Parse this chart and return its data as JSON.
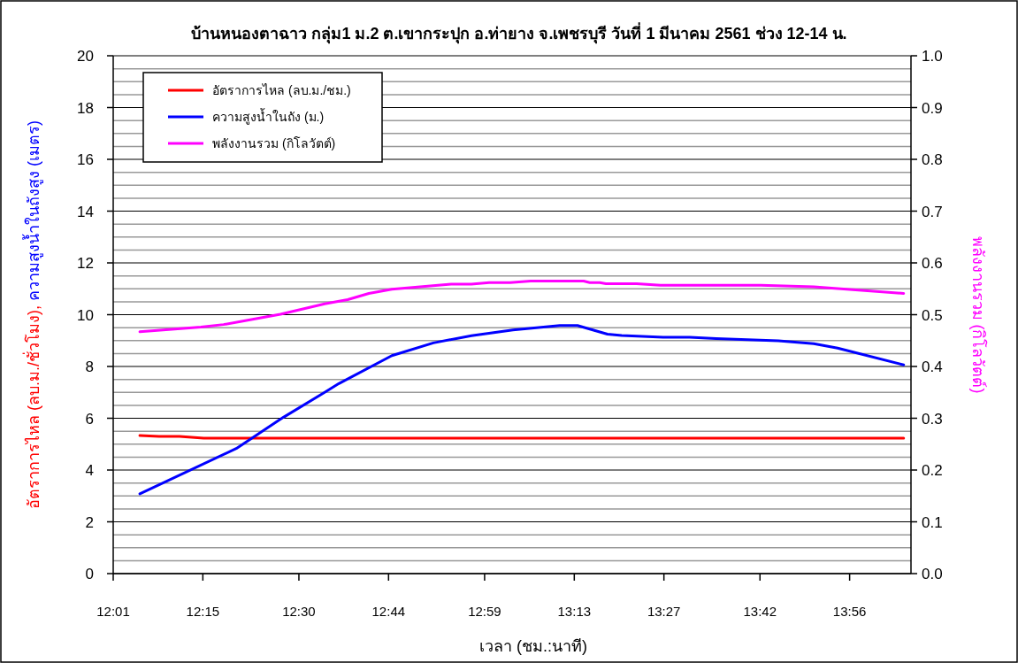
{
  "chart_data": {
    "type": "line",
    "title": "บ้านหนองตาฉาว กลุ่ม1 ม.2 ต.เขากระปุก อ.ท่ายาง จ.เพชรบุรี วันที่ 1 มีนาคม 2561 ช่วง 12-14 น.",
    "xlabel": "เวลา (ชม.:นาที)",
    "ylabel": "อัตราการไหล (ลบ.ม./ชั่วโมง), ความสูงน้ำในถังสูง (เมตร)",
    "y2label": "พลังงานรวม (กิโลวัตต์)",
    "xlim": [
      12.0167,
      14.093
    ],
    "xticks": [
      {
        "value": 12.0167,
        "label": "12:01"
      },
      {
        "value": 12.25,
        "label": "12:15"
      },
      {
        "value": 12.5,
        "label": "12:30"
      },
      {
        "value": 12.7333,
        "label": "12:44"
      },
      {
        "value": 12.9833,
        "label": "12:59"
      },
      {
        "value": 13.2167,
        "label": "13:13"
      },
      {
        "value": 13.45,
        "label": "13:27"
      },
      {
        "value": 13.7,
        "label": "13:42"
      },
      {
        "value": 13.9333,
        "label": "13:56"
      }
    ],
    "ylim": [
      0,
      20
    ],
    "yticks": [
      0,
      2,
      4,
      6,
      8,
      10,
      12,
      14,
      16,
      18,
      20
    ],
    "y2lim": [
      0,
      1
    ],
    "y2ticks": [
      {
        "value": 0,
        "label": "0.0"
      },
      0.1,
      0.2,
      0.3,
      0.4,
      0.5,
      0.6,
      0.7,
      0.8,
      0.9,
      {
        "value": 1,
        "label": "1.0"
      }
    ],
    "grid": "y",
    "legend": "top left",
    "marker": "none",
    "line_style": "solid",
    "series": [
      {
        "name": "อัตราการไหล (ลบ.ม./ชม.)",
        "color": "#ff0000",
        "x": [
          12.086,
          12.136,
          12.189,
          12.252,
          14.074
        ],
        "values": [
          5.33,
          5.3,
          5.3,
          5.23,
          5.23
        ]
      },
      {
        "name": "ความสูงน้ำในถัง (ม.)",
        "color": "#0000ff",
        "x": [
          12.086,
          12.337,
          12.459,
          12.567,
          12.604,
          12.742,
          12.85,
          12.949,
          13.057,
          13.179,
          13.225,
          13.303,
          13.34,
          13.448,
          13.517,
          13.586,
          13.748,
          13.84,
          13.902,
          14.074
        ],
        "values": [
          3.08,
          4.83,
          6.03,
          7.0,
          7.34,
          8.42,
          8.91,
          9.19,
          9.41,
          9.58,
          9.58,
          9.25,
          9.2,
          9.13,
          9.13,
          9.08,
          8.99,
          8.88,
          8.71,
          8.06
        ]
      },
      {
        "name": "พลังงานรวม (กิโลวัตต์)",
        "color": "#ff00ff",
        "axis": "y2",
        "x": [
          12.086,
          12.245,
          12.304,
          12.373,
          12.452,
          12.567,
          12.627,
          12.682,
          12.742,
          12.896,
          12.949,
          12.995,
          13.05,
          13.103,
          13.241,
          13.257,
          13.283,
          13.299,
          13.379,
          13.441,
          13.702,
          13.84,
          14.074
        ],
        "values": [
          0.467,
          0.476,
          0.481,
          0.49,
          0.501,
          0.521,
          0.529,
          0.541,
          0.549,
          0.559,
          0.559,
          0.562,
          0.562,
          0.565,
          0.565,
          0.562,
          0.562,
          0.56,
          0.56,
          0.557,
          0.557,
          0.554,
          0.541
        ]
      }
    ]
  }
}
